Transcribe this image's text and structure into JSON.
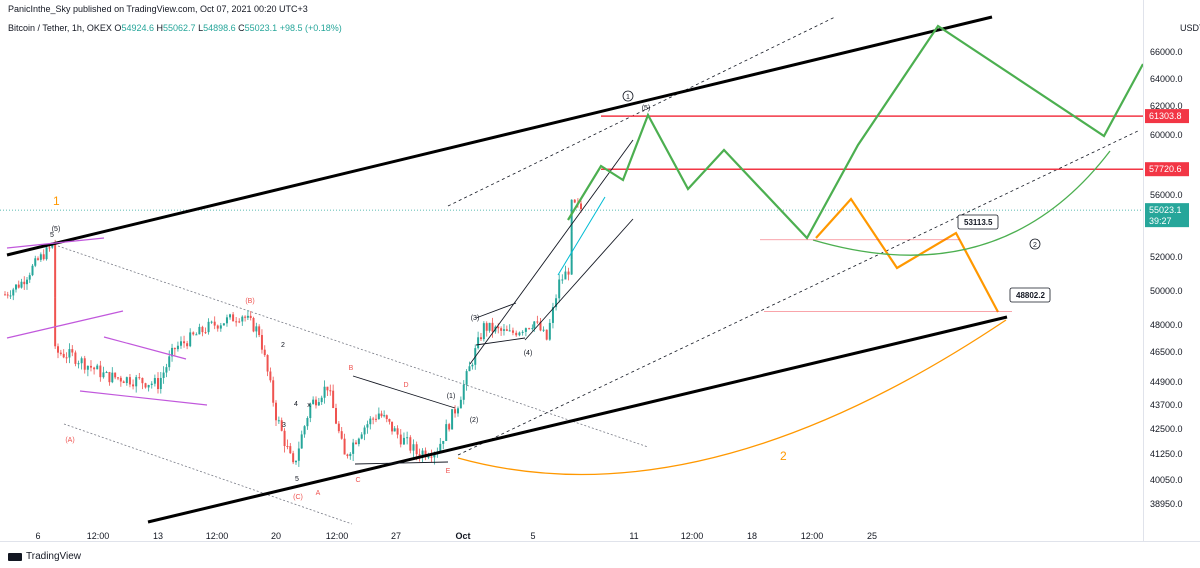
{
  "header": {
    "publisher": "PanicInthe_Sky published on TradingView.com, Oct 07, 2021 00:20 UTC+3",
    "symbol": "Bitcoin / Tether, 1h, OKEX",
    "o_label": "O",
    "o": "54924.6",
    "h_label": "H",
    "h": "55062.7",
    "l_label": "L",
    "l": "54898.6",
    "c_label": "C",
    "c": "55023.1",
    "change": "+98.5 (+0.18%)"
  },
  "logo_text": "TradingView",
  "colors": {
    "up": "#26a69a",
    "down": "#ef5350",
    "channel": "#000000",
    "projection_green": "#4caf50",
    "projection_orange": "#ff9800",
    "level_red": "#f23645",
    "triangle_purple": "#c158dc"
  },
  "chart_data": {
    "type": "candlestick",
    "symbol": "BTC/USDT",
    "timeframe": "1h",
    "currency": "USDT",
    "price_axis": [
      "66000.0",
      "64000.0",
      "62000.0",
      "60000.0",
      "56000.0",
      "52000.0",
      "50000.0",
      "48000.0",
      "46500.0",
      "44900.0",
      "43700.0",
      "42500.0",
      "41250.0",
      "40050.0",
      "38950.0"
    ],
    "time_axis": [
      "6",
      "12:00",
      "13",
      "12:00",
      "20",
      "12:00",
      "27",
      "Oct",
      "5",
      "11",
      "12:00",
      "18",
      "12:00",
      "25"
    ],
    "last_price": "55023.1",
    "countdown": "39:27",
    "levels": [
      {
        "price": "61303.8",
        "color": "#f23645"
      },
      {
        "price": "57720.6",
        "color": "#f23645"
      }
    ],
    "targets": [
      "53113.5",
      "48802.2"
    ],
    "scenario_labels": [
      "1",
      "2"
    ],
    "circled_labels": [
      "1",
      "2"
    ],
    "wave_labels": [
      "(5)",
      "5",
      "(A)",
      "(B)",
      "2",
      "4",
      "x",
      "3",
      "5",
      "(C)",
      "A",
      "B",
      "C",
      "D",
      "E",
      "(1)",
      "(2)",
      "(3)",
      "(4)",
      "(5)"
    ],
    "price_path_approx": [
      {
        "t": "Sep 4",
        "p": 49800
      },
      {
        "t": "Sep 5",
        "p": 50500
      },
      {
        "t": "Sep 6",
        "p": 51800
      },
      {
        "t": "Sep 7",
        "p": 52900
      },
      {
        "t": "Sep 7",
        "p": 46500
      },
      {
        "t": "Sep 8",
        "p": 46300
      },
      {
        "t": "Sep 10",
        "p": 45200
      },
      {
        "t": "Sep 11",
        "p": 45100
      },
      {
        "t": "Sep 13",
        "p": 44800
      },
      {
        "t": "Sep 14",
        "p": 46700
      },
      {
        "t": "Sep 16",
        "p": 47900
      },
      {
        "t": "Sep 18",
        "p": 48600
      },
      {
        "t": "Sep 19",
        "p": 47600
      },
      {
        "t": "Sep 20",
        "p": 43200
      },
      {
        "t": "Sep 21",
        "p": 40600
      },
      {
        "t": "Sep 22",
        "p": 43700
      },
      {
        "t": "Sep 23",
        "p": 44700
      },
      {
        "t": "Sep 24",
        "p": 41100
      },
      {
        "t": "Sep 25",
        "p": 42500
      },
      {
        "t": "Sep 26",
        "p": 43300
      },
      {
        "t": "Sep 28",
        "p": 41300
      },
      {
        "t": "Sep 29",
        "p": 41500
      },
      {
        "t": "Sep 30",
        "p": 43800
      },
      {
        "t": "Oct 1",
        "p": 47900
      },
      {
        "t": "Oct 2",
        "p": 47500
      },
      {
        "t": "Oct 3",
        "p": 48200
      },
      {
        "t": "Oct 4",
        "p": 47200
      },
      {
        "t": "Oct 5",
        "p": 50500
      },
      {
        "t": "Oct 6",
        "p": 51500
      },
      {
        "t": "Oct 6",
        "p": 55400
      },
      {
        "t": "Oct 7",
        "p": 55023
      }
    ]
  }
}
